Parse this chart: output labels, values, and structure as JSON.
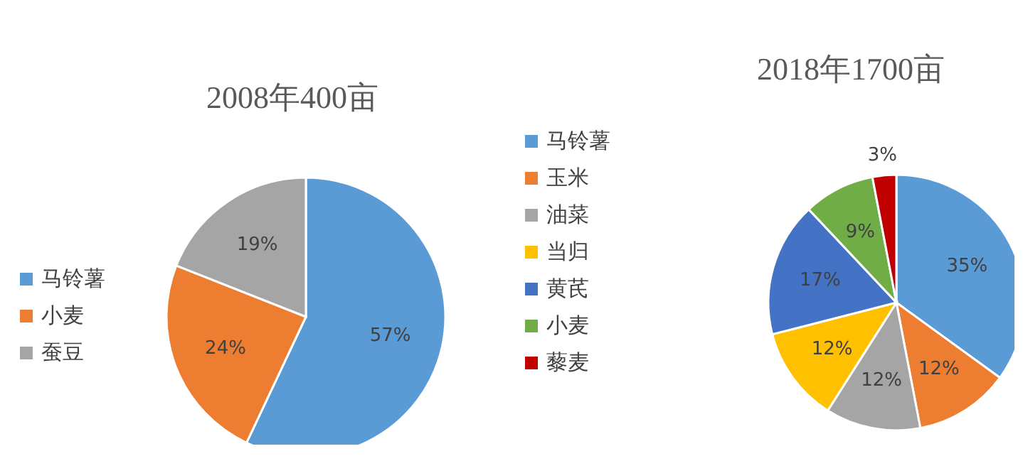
{
  "chart_data": [
    {
      "type": "pie",
      "title": "2008年400亩",
      "categories": [
        "马铃薯",
        "小麦",
        "蚕豆"
      ],
      "values": [
        57,
        24,
        19
      ],
      "colors": [
        "#5b9bd5",
        "#ed7d31",
        "#a5a5a5"
      ],
      "value_labels": [
        "57%",
        "24%",
        "19%"
      ],
      "legend": "left"
    },
    {
      "type": "pie",
      "title": "2018年1700亩",
      "categories": [
        "马铃薯",
        "玉米",
        "油菜",
        "当归",
        "黄芪",
        "小麦",
        "藜麦"
      ],
      "values": [
        35,
        12,
        12,
        12,
        17,
        9,
        3
      ],
      "colors": [
        "#5b9bd5",
        "#ed7d31",
        "#a5a5a5",
        "#ffc000",
        "#4472c4",
        "#70ad47",
        "#c00000"
      ],
      "value_labels": [
        "35%",
        "12%",
        "12%",
        "12%",
        "17%",
        "9%",
        "3%"
      ],
      "legend": "top left"
    }
  ]
}
